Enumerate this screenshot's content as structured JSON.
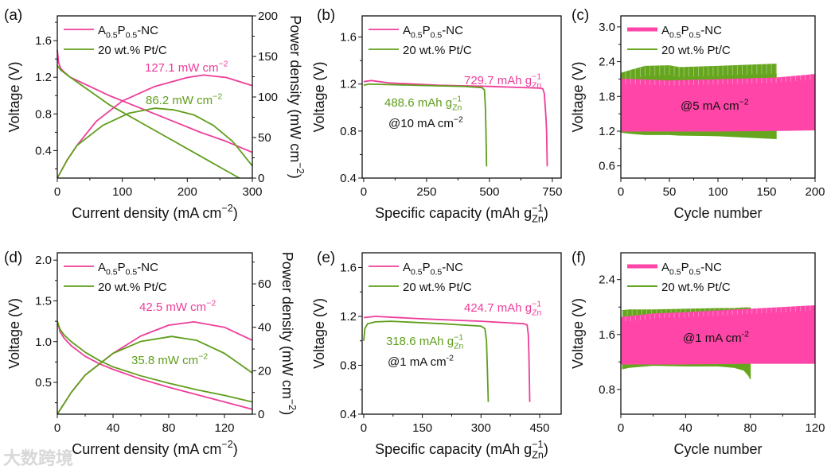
{
  "colors": {
    "pink": "#ee3d9a",
    "green": "#5f9e1c",
    "pink_fill": "#ff45a8",
    "green_fill": "#66a61e",
    "axis": "#111111"
  },
  "watermark": "大数跨境",
  "legend": {
    "series": [
      [
        {
          "t": "A"
        },
        {
          "t": "0.5",
          "s": "sub"
        },
        {
          "t": "P"
        },
        {
          "t": "0.5",
          "s": "sub"
        },
        {
          "t": "-NC"
        }
      ],
      [
        {
          "t": "20 wt.% Pt/C"
        }
      ]
    ]
  },
  "chart_data": [
    {
      "panel": "(a)",
      "type": "line",
      "xlabel": [
        {
          "t": "Current density (mA cm"
        },
        {
          "t": "−2",
          "s": "sup"
        },
        {
          "t": ")"
        }
      ],
      "ylabel": [
        {
          "t": "Voltage (V)"
        }
      ],
      "y2label": [
        {
          "t": "Power density (mW cm"
        },
        {
          "t": "−2",
          "s": "sup"
        },
        {
          "t": ")"
        }
      ],
      "xlim": [
        0,
        300
      ],
      "ylim": [
        0.1,
        1.87
      ],
      "y2lim": [
        0,
        200
      ],
      "xticks": [
        0,
        100,
        200,
        300
      ],
      "yticks": [
        "0.4",
        "0.8",
        "1.2",
        "1.6"
      ],
      "y2ticks": [
        0,
        50,
        100,
        150,
        200
      ],
      "series": [
        {
          "name": "A0.5P0.5-NC voltage",
          "color": "pink",
          "axis": "y",
          "x": [
            0,
            2,
            5,
            10,
            20,
            35,
            50,
            80,
            115,
            150,
            185,
            220,
            260,
            300
          ],
          "y": [
            1.5,
            1.36,
            1.3,
            1.26,
            1.2,
            1.15,
            1.1,
            1.0,
            0.9,
            0.8,
            0.7,
            0.6,
            0.5,
            0.38
          ]
        },
        {
          "name": "20 wt.% Pt/C voltage",
          "color": "green",
          "axis": "y",
          "x": [
            0,
            5,
            20,
            40,
            60,
            80,
            105,
            130,
            155,
            180,
            205,
            230,
            255,
            280
          ],
          "y": [
            1.33,
            1.28,
            1.2,
            1.1,
            1.0,
            0.9,
            0.8,
            0.7,
            0.6,
            0.5,
            0.4,
            0.3,
            0.2,
            0.1
          ]
        },
        {
          "name": "A0.5P0.5-NC power",
          "color": "pink",
          "axis": "y2",
          "x": [
            0,
            15,
            30,
            60,
            100,
            150,
            200,
            225,
            260,
            300
          ],
          "y": [
            0,
            22,
            40,
            70,
            95,
            113,
            124,
            127.1,
            124,
            114
          ]
        },
        {
          "name": "20 wt.% Pt/C power",
          "color": "green",
          "axis": "y2",
          "x": [
            0,
            15,
            30,
            70,
            110,
            150,
            180,
            210,
            240,
            270,
            300
          ],
          "y": [
            0,
            22,
            40,
            65,
            80,
            86.2,
            84,
            78,
            65,
            45,
            15
          ]
        }
      ],
      "annotations": [
        {
          "text": [
            {
              "t": "127.1 mW cm"
            },
            {
              "t": "−2",
              "s": "sup"
            }
          ],
          "color": "pink"
        },
        {
          "text": [
            {
              "t": "86.2 mW cm"
            },
            {
              "t": "−2",
              "s": "sup"
            }
          ],
          "color": "green"
        }
      ]
    },
    {
      "panel": "(b)",
      "type": "line",
      "xlabel": [
        {
          "t": "Specific capacity (mAh g"
        },
        {
          "t": "−1",
          "s": "sup"
        },
        {
          "t": "Zn",
          "s": "sub"
        },
        {
          "t": ")"
        }
      ],
      "ylabel": [
        {
          "t": "Voltage (V)"
        }
      ],
      "xlim": [
        -6,
        785
      ],
      "ylim": [
        0.4,
        1.78
      ],
      "xticks": [
        0,
        250,
        500,
        750
      ],
      "yticks": [
        "0.4",
        "0.8",
        "1.2",
        "1.6"
      ],
      "series": [
        {
          "name": "A0.5P0.5-NC",
          "color": "pink",
          "axis": "y",
          "x": [
            0,
            30,
            100,
            300,
            500,
            700,
            712,
            718,
            722,
            725,
            727,
            729.7
          ],
          "y": [
            1.22,
            1.23,
            1.21,
            1.19,
            1.18,
            1.165,
            1.16,
            1.12,
            1.0,
            0.9,
            0.8,
            0.5
          ]
        },
        {
          "name": "20 wt.% Pt/C",
          "color": "green",
          "axis": "y",
          "x": [
            0,
            20,
            200,
            400,
            470,
            480,
            484,
            486,
            488.6
          ],
          "y": [
            1.19,
            1.2,
            1.19,
            1.18,
            1.17,
            1.15,
            1.0,
            0.8,
            0.5
          ]
        }
      ],
      "annotations": [
        {
          "text": [
            {
              "t": "729.7 mAh g"
            },
            {
              "t": "−1",
              "s": "sup"
            },
            {
              "t": "Zn",
              "s": "sub"
            }
          ],
          "color": "pink"
        },
        {
          "text": [
            {
              "t": "488.6 mAh g"
            },
            {
              "t": "−1",
              "s": "sup"
            },
            {
              "t": "Zn",
              "s": "sub"
            }
          ],
          "color": "green"
        },
        {
          "text": [
            {
              "t": "@10 mA cm"
            },
            {
              "t": "−2",
              "s": "sup"
            }
          ],
          "color": "axis"
        }
      ]
    },
    {
      "panel": "(c)",
      "type": "area",
      "xlabel": [
        {
          "t": "Cycle number"
        }
      ],
      "ylabel": [
        {
          "t": "Voltage (V)"
        }
      ],
      "xlim": [
        0,
        200
      ],
      "ylim": [
        0.39,
        3.19
      ],
      "xticks": [
        0,
        50,
        100,
        150,
        200
      ],
      "yticks": [
        "0.6",
        "1.2",
        "1.8",
        "2.4",
        "3.0"
      ],
      "series": [
        {
          "name": "20 wt.% Pt/C",
          "color": "green",
          "x": [
            0,
            10,
            25,
            50,
            60,
            100,
            160
          ],
          "upper": [
            2.2,
            2.25,
            2.32,
            2.33,
            2.3,
            2.32,
            2.36
          ],
          "lower": [
            1.18,
            1.16,
            1.14,
            1.14,
            1.13,
            1.12,
            1.07
          ]
        },
        {
          "name": "A0.5P0.5-NC",
          "color": "pink",
          "x": [
            0,
            50,
            100,
            160,
            200
          ],
          "upper": [
            2.1,
            2.07,
            2.09,
            2.12,
            2.18
          ],
          "lower": [
            1.2,
            1.2,
            1.2,
            1.21,
            1.22
          ]
        }
      ],
      "annotations": [
        {
          "text": [
            {
              "t": "@5 mA cm"
            },
            {
              "t": "−2",
              "s": "sup"
            }
          ],
          "color": "axis"
        }
      ]
    },
    {
      "panel": "(d)",
      "type": "line",
      "xlabel": [
        {
          "t": "Current density (mA cm"
        },
        {
          "t": "−2",
          "s": "sup"
        },
        {
          "t": ")"
        }
      ],
      "ylabel": [
        {
          "t": "Voltage (V)"
        }
      ],
      "y2label": [
        {
          "t": "Power density (mW cm"
        },
        {
          "t": "−2",
          "s": "sup"
        },
        {
          "t": ")"
        }
      ],
      "xlim": [
        0,
        140
      ],
      "ylim": [
        0.11,
        2.09
      ],
      "y2lim": [
        0,
        74.3
      ],
      "xticks": [
        0,
        40,
        80,
        120
      ],
      "yticks": [
        "0.5",
        "1.0",
        "1.5",
        "2.0"
      ],
      "y2ticks": [
        0,
        20,
        40,
        60
      ],
      "series": [
        {
          "name": "A0.5P0.5-NC voltage",
          "color": "pink",
          "axis": "y",
          "x": [
            0,
            2,
            5,
            10,
            20,
            30,
            40,
            60,
            80,
            100,
            120,
            140
          ],
          "y": [
            1.25,
            1.12,
            1.04,
            0.95,
            0.82,
            0.73,
            0.66,
            0.54,
            0.44,
            0.35,
            0.26,
            0.17
          ]
        },
        {
          "name": "20 wt.% Pt/C voltage",
          "color": "green",
          "axis": "y",
          "x": [
            0,
            2,
            5,
            10,
            20,
            30,
            40,
            60,
            80,
            100,
            120,
            140
          ],
          "y": [
            1.25,
            1.15,
            1.08,
            1.0,
            0.87,
            0.77,
            0.69,
            0.58,
            0.49,
            0.41,
            0.34,
            0.26
          ]
        },
        {
          "name": "A0.5P0.5-NC power",
          "color": "pink",
          "axis": "y2",
          "x": [
            0,
            10,
            20,
            40,
            60,
            80,
            98,
            120,
            140
          ],
          "y": [
            0,
            10,
            18,
            28,
            36,
            41,
            42.5,
            40,
            34
          ]
        },
        {
          "name": "20 wt.% Pt/C power",
          "color": "green",
          "axis": "y2",
          "x": [
            0,
            10,
            20,
            40,
            60,
            82,
            100,
            120,
            140
          ],
          "y": [
            0,
            10,
            18,
            28,
            33.5,
            35.8,
            34,
            28,
            19
          ]
        }
      ],
      "annotations": [
        {
          "text": [
            {
              "t": "42.5 mW cm"
            },
            {
              "t": "−2",
              "s": "sup"
            }
          ],
          "color": "pink"
        },
        {
          "text": [
            {
              "t": "35.8 mW cm"
            },
            {
              "t": "−2",
              "s": "sup"
            }
          ],
          "color": "green"
        }
      ]
    },
    {
      "panel": "(e)",
      "type": "line",
      "xlabel": [
        {
          "t": "Specific capacity (mAh g"
        },
        {
          "t": "−1",
          "s": "sup"
        },
        {
          "t": "Zn",
          "s": "sub"
        },
        {
          "t": ")"
        }
      ],
      "ylabel": [
        {
          "t": "Voltage (V)"
        }
      ],
      "xlim": [
        -4,
        505
      ],
      "ylim": [
        0.4,
        1.72
      ],
      "xticks": [
        0,
        150,
        300,
        450
      ],
      "yticks": [
        "0.4",
        "0.8",
        "1.2",
        "1.6"
      ],
      "series": [
        {
          "name": "A0.5P0.5-NC",
          "color": "pink",
          "axis": "y",
          "x": [
            0,
            30,
            150,
            300,
            410,
            418,
            421,
            422.5,
            424.7
          ],
          "y": [
            1.19,
            1.2,
            1.18,
            1.16,
            1.14,
            1.13,
            1.05,
            0.9,
            0.5
          ]
        },
        {
          "name": "20 wt.% Pt/C",
          "color": "green",
          "axis": "y",
          "x": [
            0,
            3,
            10,
            30,
            70,
            200,
            300,
            310,
            314,
            316,
            318.6
          ],
          "y": [
            1.0,
            1.1,
            1.14,
            1.155,
            1.16,
            1.14,
            1.12,
            1.1,
            1.0,
            0.8,
            0.5
          ]
        }
      ],
      "annotations": [
        {
          "text": [
            {
              "t": "424.7 mAh g"
            },
            {
              "t": "−1",
              "s": "sup"
            },
            {
              "t": "Zn",
              "s": "sub"
            }
          ],
          "color": "pink"
        },
        {
          "text": [
            {
              "t": "318.6 mAh g"
            },
            {
              "t": "−1",
              "s": "sup"
            },
            {
              "t": "Zn",
              "s": "sub"
            }
          ],
          "color": "green"
        },
        {
          "text": [
            {
              "t": "@1 mA cm"
            },
            {
              "t": "-2",
              "s": "sup"
            }
          ],
          "color": "axis"
        }
      ]
    },
    {
      "panel": "(f)",
      "type": "area",
      "xlabel": [
        {
          "t": "Cycle number"
        }
      ],
      "ylabel": [
        {
          "t": "Voltage (V)"
        }
      ],
      "xlim": [
        0,
        120
      ],
      "ylim": [
        0.44,
        2.79
      ],
      "xticks": [
        0,
        40,
        80,
        120
      ],
      "yticks": [
        "0.8",
        "1.6",
        "2.4"
      ],
      "series": [
        {
          "name": "20 wt.% Pt/C",
          "color": "green",
          "x": [
            1,
            5,
            20,
            40,
            60,
            70,
            76,
            79,
            80
          ],
          "upper": [
            1.95,
            1.96,
            1.96,
            1.97,
            1.98,
            1.98,
            1.99,
            1.99,
            1.99
          ],
          "lower": [
            1.1,
            1.12,
            1.15,
            1.14,
            1.14,
            1.12,
            1.08,
            1.0,
            0.95
          ]
        },
        {
          "name": "A0.5P0.5-NC",
          "color": "pink",
          "x": [
            0,
            20,
            40,
            80,
            120
          ],
          "upper": [
            1.85,
            1.9,
            1.92,
            1.97,
            2.02
          ],
          "lower": [
            1.17,
            1.17,
            1.17,
            1.18,
            1.18
          ]
        }
      ],
      "annotations": [
        {
          "text": [
            {
              "t": "@1 mA cm"
            },
            {
              "t": "-2",
              "s": "sup"
            }
          ],
          "color": "axis"
        }
      ]
    }
  ]
}
